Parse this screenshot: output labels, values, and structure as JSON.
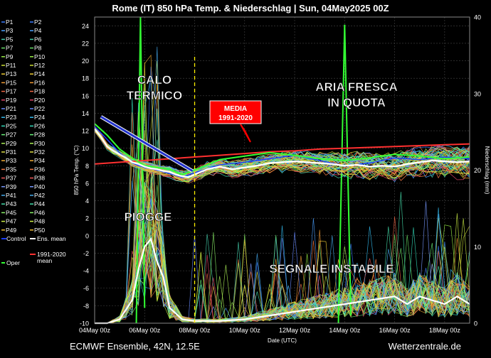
{
  "title": "Rome  (IT)  850 hPa Temp. & Niederschlag | Sun, 04May2025 00Z",
  "footer": {
    "left": "ECMWF Ensemble, 42N, 12.5E",
    "right": "Wetterzentrale.de"
  },
  "colors": {
    "background": "#000000",
    "grid": "#444444",
    "ens_mean": "#ffffff",
    "climatology": "#ff3030",
    "control": "#1a3cff",
    "oper": "#33ff33",
    "annotation_box": "#ff0000",
    "marker_line": "#ffee00"
  },
  "annotations": {
    "calo_termico": "CALO\nTERMICO",
    "aria_fresca": "ARIA FRESCA\nIN QUOTA",
    "media": "MEDIA\n1991-2020",
    "piogge": "PIOGGE",
    "segnale": "SEGNALE INSTABILE"
  },
  "legend": {
    "members": [
      "P1",
      "P2",
      "P3",
      "P4",
      "P5",
      "P6",
      "P7",
      "P8",
      "P9",
      "P10",
      "P11",
      "P12",
      "P13",
      "P14",
      "P15",
      "P16",
      "P17",
      "P18",
      "P19",
      "P20",
      "P21",
      "P22",
      "P23",
      "P24",
      "P25",
      "P26",
      "P27",
      "P28",
      "P29",
      "P30",
      "P31",
      "P32",
      "P33",
      "P34",
      "P35",
      "P36",
      "P37",
      "P38",
      "P39",
      "P40",
      "P41",
      "P42",
      "P43",
      "P44",
      "P45",
      "P46",
      "P47",
      "P48",
      "P49",
      "P50"
    ],
    "member_colors": [
      "#3a7cff",
      "#3a7cff",
      "#4aa0ff",
      "#4aa0ff",
      "#44ccaa",
      "#44ccaa",
      "#66dd66",
      "#66dd66",
      "#99ee44",
      "#99ee44",
      "#ccdd33",
      "#ccdd33",
      "#eecc33",
      "#eecc33",
      "#ee9933",
      "#ee9933",
      "#ee6644",
      "#ee6644",
      "#dd4466",
      "#dd4466",
      "#6688ff",
      "#6688ff",
      "#33bbee",
      "#33bbee",
      "#33ddbb",
      "#33ddbb",
      "#66ee77",
      "#66ee77",
      "#aaee55",
      "#aaee55",
      "#dddd44",
      "#dddd44",
      "#eeaa33",
      "#eeaa33",
      "#ee7744",
      "#ee7744",
      "#ee5555",
      "#ee5555",
      "#7799ff",
      "#7799ff",
      "#44aaee",
      "#44aaee",
      "#44ddaa",
      "#44ddaa",
      "#88ee66",
      "#88ee66",
      "#ccee44",
      "#ccee44",
      "#eebb33",
      "#eebb33"
    ],
    "control": "Control",
    "ens_mean": "Ens. mean",
    "climatology": "1991-2020\nmean",
    "oper": "Oper"
  },
  "chart_data": {
    "type": "line",
    "title": "Rome  (IT)  850 hPa Temp. & Niederschlag | Sun, 04May2025 00Z",
    "xlabel": "Date (UTC)",
    "ylabel": "850 hPa Temp. (°C)",
    "y2label": "Niederschlag (mm)",
    "x_ticks": [
      "04May 00z",
      "06May 00z",
      "08May 00z",
      "10May 00z",
      "12May 00z",
      "14May 00z",
      "16May 00z",
      "18May 00z"
    ],
    "x_hours": [
      0,
      48,
      96,
      144,
      192,
      240,
      288,
      336
    ],
    "xlim": [
      0,
      360
    ],
    "ylim": [
      -10,
      25
    ],
    "y_ticks": [
      -10,
      -8,
      -6,
      -4,
      -2,
      0,
      2,
      4,
      6,
      8,
      10,
      12,
      14,
      16,
      18,
      20,
      22,
      24
    ],
    "y2lim": [
      0,
      40
    ],
    "y2_ticks": [
      0,
      10,
      20,
      30,
      40
    ],
    "grid": true,
    "vertical_marker_hours": 96,
    "series": [
      {
        "name": "Ens. mean",
        "role": "temp_mean",
        "x": [
          0,
          6,
          12,
          18,
          24,
          30,
          36,
          42,
          48,
          54,
          60,
          66,
          72,
          78,
          84,
          90,
          96,
          108,
          120,
          132,
          144,
          156,
          168,
          180,
          192,
          204,
          216,
          228,
          240,
          252,
          264,
          276,
          288,
          300,
          312,
          324,
          336,
          348,
          360
        ],
        "y": [
          12.2,
          11.3,
          10.2,
          9.7,
          9.3,
          8.9,
          8.4,
          8.2,
          7.9,
          7.7,
          7.6,
          7.4,
          7.3,
          7.0,
          6.8,
          6.7,
          7.0,
          7.6,
          7.9,
          7.6,
          7.8,
          8.0,
          8.3,
          8.4,
          8.5,
          8.4,
          8.3,
          8.2,
          8.0,
          8.1,
          7.9,
          8.0,
          7.9,
          8.2,
          8.4,
          8.6,
          8.5,
          8.4,
          8.5
        ]
      },
      {
        "name": "1991-2020 mean",
        "role": "climatology",
        "x": [
          0,
          24,
          48,
          72,
          96,
          120,
          144,
          168,
          192,
          216,
          240,
          264,
          288,
          312,
          336,
          360
        ],
        "y": [
          8.2,
          8.4,
          8.6,
          8.8,
          9.0,
          9.2,
          9.4,
          9.6,
          9.7,
          9.9,
          10.0,
          10.1,
          10.2,
          10.3,
          10.4,
          10.5
        ]
      },
      {
        "name": "Control",
        "role": "temp_control",
        "x": [
          0,
          12,
          24,
          36,
          48,
          60,
          72,
          84,
          96,
          120,
          144,
          168,
          192,
          216,
          240,
          264,
          288,
          312,
          336,
          360
        ],
        "y": [
          12.5,
          11.0,
          9.5,
          8.3,
          7.8,
          7.5,
          7.1,
          6.7,
          7.2,
          8.1,
          8.4,
          8.8,
          9.2,
          8.6,
          8.0,
          8.3,
          8.9,
          8.7,
          9.0,
          8.8
        ]
      },
      {
        "name": "Oper",
        "role": "temp_oper",
        "x": [
          0,
          12,
          24,
          36,
          48,
          60,
          72,
          84,
          96,
          120,
          144,
          168,
          192,
          216,
          240,
          264,
          288,
          312,
          336,
          360
        ],
        "y": [
          12.8,
          11.5,
          9.9,
          8.9,
          8.0,
          7.8,
          7.6,
          7.0,
          7.5,
          8.7,
          9.1,
          9.5,
          9.2,
          8.8,
          8.6,
          8.9,
          9.3,
          9.1,
          8.8,
          9.0
        ]
      },
      {
        "name": "Ens. mean precipitation (mm)",
        "role": "precip_mean",
        "x": [
          0,
          12,
          24,
          36,
          42,
          48,
          54,
          60,
          66,
          72,
          84,
          96,
          120,
          144,
          168,
          192,
          216,
          240,
          264,
          288,
          300,
          312,
          324,
          336,
          348,
          360
        ],
        "y": [
          0,
          0,
          0.5,
          3,
          7,
          10,
          11,
          8,
          6,
          2,
          0.5,
          0.3,
          0.3,
          0.5,
          1,
          1.5,
          2,
          2.5,
          3,
          3.5,
          2.5,
          3.5,
          3,
          2.5,
          3.5,
          2.5
        ]
      }
    ]
  }
}
